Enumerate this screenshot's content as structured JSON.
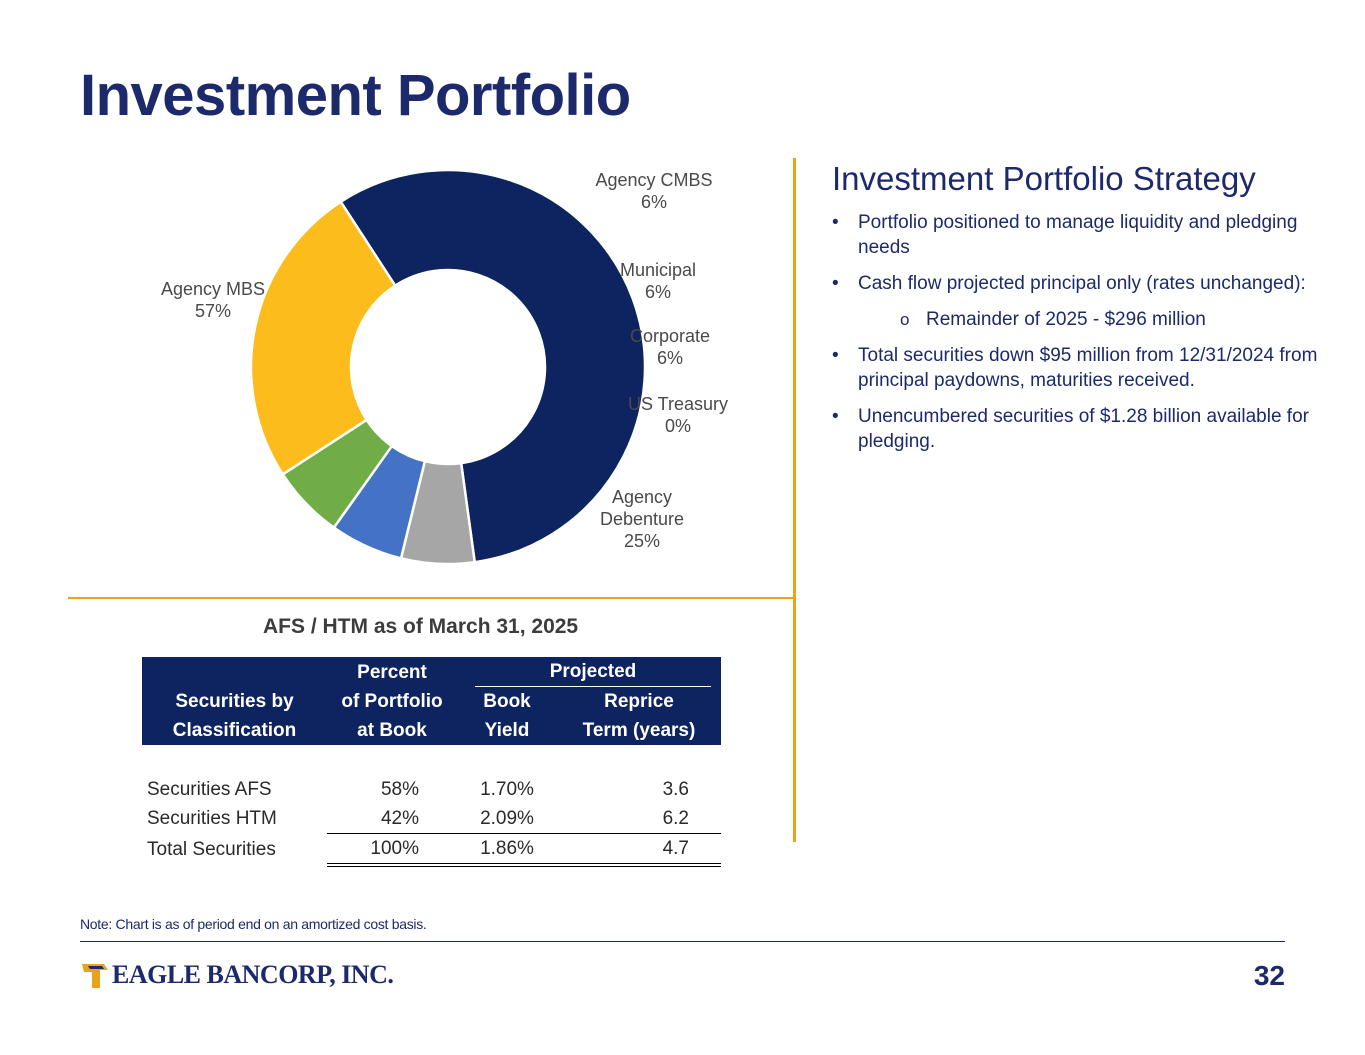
{
  "page": {
    "title": "Investment Portfolio",
    "note": "Note: Chart is as of period end on an amortized cost basis.",
    "page_number": "32",
    "logo_text": "EAGLE BANCORP, INC."
  },
  "colors": {
    "navy": "#0e2460",
    "gold": "#e8a317"
  },
  "chart_data": {
    "type": "pie",
    "subtype": "donut",
    "categories": [
      "Agency MBS",
      "Agency CMBS",
      "Municipal",
      "Corporate",
      "US Treasury",
      "Agency Debenture"
    ],
    "values": [
      57,
      6,
      6,
      6,
      0,
      25
    ],
    "label_values": [
      "57%",
      "6%",
      "6%",
      "6%",
      "0%",
      "25%"
    ],
    "colors": [
      "#0e2460",
      "#a6a6a6",
      "#4472c4",
      "#70ad47",
      "#ffffff",
      "#fbbc1c"
    ],
    "start_angle_deg": -33
  },
  "strategy": {
    "heading": "Investment Portfolio Strategy",
    "bullets": [
      "Portfolio positioned to manage liquidity and pledging needs",
      "Cash flow projected principal only (rates unchanged):",
      "Remainder of 2025 - $296 million",
      "Total securities down $95 million from 12/31/2024 from principal paydowns, maturities received.",
      "Unencumbered securities of $1.28 billion available for pledging."
    ],
    "bullet_glyph": "•",
    "sub_bullet_glyph": "o"
  },
  "table": {
    "title": "AFS / HTM as of March 31, 2025",
    "header": {
      "percent": "Percent",
      "projected": "Projected",
      "col1_line1": "Securities by",
      "col1_line2": "Classification",
      "col2_line1": "of Portfolio",
      "col2_line2": "at Book",
      "col3_line1": "Book",
      "col3_line2": "Yield",
      "col4_line1": "Reprice",
      "col4_line2": "Term (years)"
    },
    "rows": [
      {
        "label": "Securities AFS",
        "percent": "58%",
        "yield": "1.70%",
        "term": "3.6"
      },
      {
        "label": "Securities HTM",
        "percent": "42%",
        "yield": "2.09%",
        "term": "6.2"
      },
      {
        "label": "Total Securities",
        "percent": "100%",
        "yield": "1.86%",
        "term": "4.7"
      }
    ]
  }
}
